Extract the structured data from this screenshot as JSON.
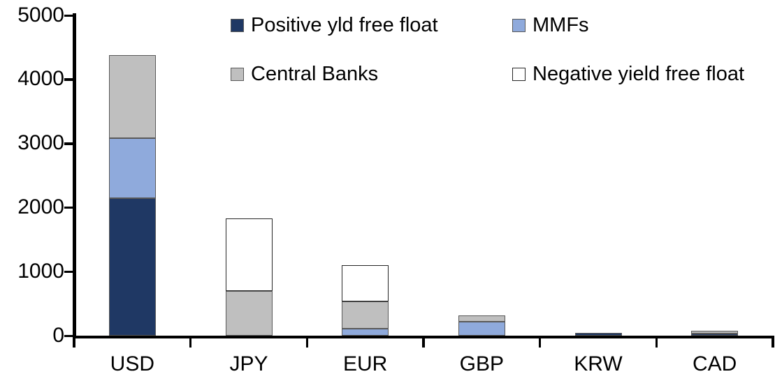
{
  "chart_data": {
    "type": "bar",
    "stacked": true,
    "title": "",
    "xlabel": "",
    "ylabel": "",
    "categories": [
      "USD",
      "JPY",
      "EUR",
      "GBP",
      "KRW",
      "CAD"
    ],
    "series": [
      {
        "name": "Positive yld free float",
        "color": "#1F3864",
        "border_color": "#595959",
        "values": [
          2150,
          0,
          0,
          0,
          45,
          40
        ]
      },
      {
        "name": "MMFs",
        "color": "#8FAADC",
        "border_color": "#595959",
        "values": [
          940,
          0,
          110,
          225,
          0,
          0
        ]
      },
      {
        "name": "Central Banks",
        "color": "#BFBFBF",
        "border_color": "#595959",
        "values": [
          1300,
          700,
          430,
          95,
          0,
          40
        ]
      },
      {
        "name": "Negative yield free float",
        "color": "#FFFFFF",
        "border_color": "#262626",
        "values": [
          0,
          1140,
          570,
          0,
          0,
          0
        ]
      }
    ],
    "stack_totals": [
      4390,
      1840,
      1110,
      320,
      45,
      80
    ],
    "ylim": [
      0,
      5000
    ],
    "yticks": [
      0,
      1000,
      2000,
      3000,
      4000,
      5000
    ],
    "ytick_labels": [
      "0",
      "1000",
      "2000",
      "3000",
      "4000",
      "5000"
    ],
    "grid": false,
    "legend_position": "top",
    "legend_columns": 2,
    "axis_color": "#000000",
    "background_color": "#FFFFFF"
  }
}
